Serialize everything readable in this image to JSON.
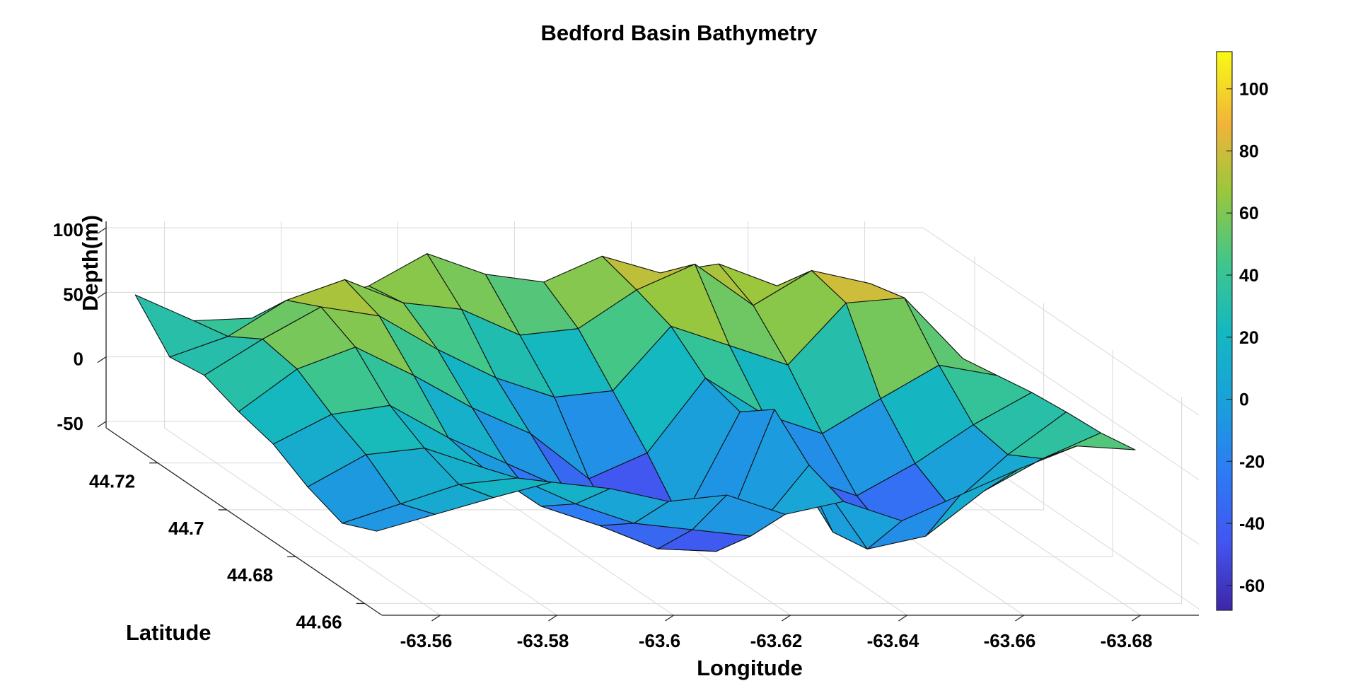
{
  "chart_data": {
    "type": "surface",
    "title": "Bedford Basin Bathymetry",
    "xlabel": "Longitude",
    "ylabel": "Latitude",
    "zlabel": "Depth(m)",
    "x_ticks": [
      "-63.56",
      "-63.58",
      "-63.6",
      "-63.62",
      "-63.64",
      "-63.66",
      "-63.68"
    ],
    "y_ticks": [
      "44.66",
      "44.68",
      "44.7",
      "44.72"
    ],
    "z_ticks": [
      "-50",
      "0",
      "50",
      "100"
    ],
    "colorbar_ticks": [
      "-60",
      "-40",
      "-20",
      "0",
      "20",
      "40",
      "60",
      "80",
      "100"
    ],
    "xlim": [
      -63.55,
      -63.69
    ],
    "ylim": [
      44.655,
      44.735
    ],
    "zlim": [
      -55,
      105
    ],
    "clim": [
      -68,
      112
    ],
    "colormap": "parula",
    "grid": true,
    "longitudes": [
      -63.685,
      -63.675,
      -63.665,
      -63.655,
      -63.645,
      -63.635,
      -63.625,
      -63.615,
      -63.605,
      -63.595,
      -63.585,
      -63.575,
      -63.565,
      -63.555
    ],
    "latitudes": [
      44.735,
      44.725,
      44.715,
      44.705,
      44.695,
      44.685,
      44.675,
      44.665
    ],
    "depths": [
      [
        42,
        60,
        55,
        72,
        65,
        78,
        58,
        64,
        80,
        55,
        40,
        30,
        28,
        48
      ],
      [
        38,
        75,
        85,
        58,
        90,
        70,
        40,
        35,
        55,
        60,
        78,
        62,
        34,
        18
      ],
      [
        35,
        82,
        78,
        30,
        45,
        60,
        10,
        5,
        20,
        42,
        68,
        75,
        50,
        22
      ],
      [
        40,
        48,
        22,
        -5,
        10,
        38,
        -20,
        -40,
        -5,
        15,
        40,
        62,
        45,
        12
      ],
      [
        45,
        20,
        -10,
        -35,
        -20,
        30,
        -55,
        -65,
        -30,
        -10,
        10,
        35,
        28,
        5
      ],
      [
        48,
        15,
        -25,
        -50,
        -45,
        50,
        -60,
        -58,
        -40,
        -25,
        5,
        20,
        15,
        -10
      ],
      [
        50,
        30,
        5,
        -30,
        -40,
        25,
        -30,
        -25,
        -20,
        -5,
        15,
        10,
        -5,
        -20
      ],
      [
        55,
        58,
        40,
        20,
        0,
        15,
        5,
        20,
        15,
        25,
        30,
        18,
        5,
        -8
      ]
    ]
  }
}
